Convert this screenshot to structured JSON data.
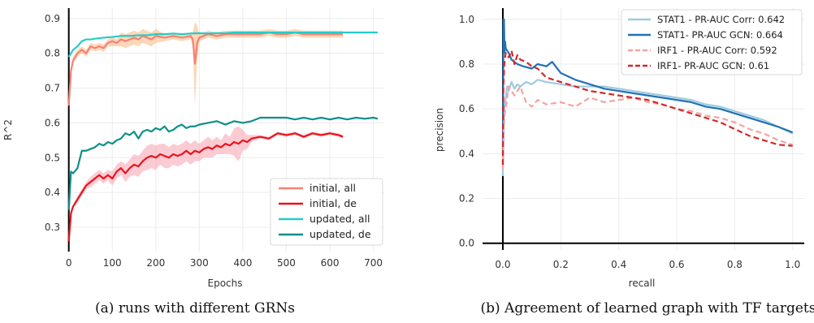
{
  "chart_data": [
    {
      "type": "line",
      "caption": "(a) runs with different GRNs",
      "xlabel": "Epochs",
      "ylabel": "R^2",
      "xlim": [
        -5,
        725
      ],
      "ylim": [
        0.23,
        0.93
      ],
      "xticks": [
        "0",
        "100",
        "200",
        "300",
        "400",
        "500",
        "600",
        "700"
      ],
      "yticks": [
        "0.3",
        "0.4",
        "0.5",
        "0.6",
        "0.7",
        "0.8",
        "0.9"
      ],
      "grid": true,
      "legend_position": "bottom-right",
      "series": [
        {
          "name": "initial, all",
          "color": "#fa8072",
          "band_color": "#f5b880",
          "x": [
            0,
            5,
            10,
            20,
            30,
            40,
            50,
            60,
            70,
            80,
            90,
            100,
            110,
            120,
            130,
            140,
            150,
            160,
            170,
            180,
            190,
            200,
            220,
            240,
            260,
            280,
            285,
            290,
            295,
            300,
            320,
            340,
            360,
            380,
            400,
            420,
            440,
            460,
            480,
            500,
            520,
            540,
            560,
            580,
            600,
            630
          ],
          "values": [
            0.65,
            0.75,
            0.78,
            0.8,
            0.81,
            0.8,
            0.82,
            0.815,
            0.82,
            0.815,
            0.83,
            0.835,
            0.83,
            0.84,
            0.835,
            0.84,
            0.845,
            0.84,
            0.85,
            0.845,
            0.84,
            0.85,
            0.845,
            0.85,
            0.845,
            0.85,
            0.84,
            0.77,
            0.83,
            0.845,
            0.855,
            0.85,
            0.855,
            0.855,
            0.855,
            0.855,
            0.855,
            0.86,
            0.855,
            0.855,
            0.86,
            0.855,
            0.855,
            0.855,
            0.855,
            0.855
          ],
          "band": [
            0.01,
            0.01,
            0.01,
            0.01,
            0.01,
            0.01,
            0.01,
            0.01,
            0.01,
            0.01,
            0.01,
            0.015,
            0.01,
            0.02,
            0.02,
            0.02,
            0.02,
            0.02,
            0.02,
            0.02,
            0.02,
            0.02,
            0.01,
            0.01,
            0.01,
            0.01,
            0.02,
            0.12,
            0.05,
            0.01,
            0.01,
            0.01,
            0.01,
            0.01,
            0.01,
            0.01,
            0.01,
            0.01,
            0.01,
            0.01,
            0.01,
            0.01,
            0.01,
            0.01,
            0.01,
            0.01
          ]
        },
        {
          "name": "initial, de",
          "color": "#e8141c",
          "band_color": "#f7a0b0",
          "x": [
            0,
            5,
            10,
            20,
            30,
            40,
            50,
            60,
            70,
            80,
            90,
            100,
            110,
            120,
            130,
            140,
            150,
            160,
            170,
            180,
            190,
            200,
            210,
            220,
            230,
            240,
            250,
            260,
            270,
            280,
            290,
            300,
            310,
            320,
            330,
            340,
            350,
            360,
            370,
            380,
            390,
            400,
            410,
            420,
            440,
            460,
            480,
            500,
            520,
            540,
            560,
            580,
            600,
            620,
            630
          ],
          "values": [
            0.26,
            0.34,
            0.36,
            0.38,
            0.4,
            0.42,
            0.43,
            0.44,
            0.45,
            0.44,
            0.45,
            0.44,
            0.46,
            0.47,
            0.455,
            0.47,
            0.48,
            0.475,
            0.49,
            0.5,
            0.505,
            0.5,
            0.51,
            0.505,
            0.5,
            0.51,
            0.505,
            0.51,
            0.52,
            0.51,
            0.52,
            0.515,
            0.525,
            0.53,
            0.525,
            0.535,
            0.53,
            0.54,
            0.535,
            0.545,
            0.54,
            0.55,
            0.545,
            0.555,
            0.56,
            0.555,
            0.57,
            0.565,
            0.57,
            0.56,
            0.57,
            0.565,
            0.57,
            0.565,
            0.56
          ],
          "band": [
            0.0,
            0.005,
            0.005,
            0.01,
            0.01,
            0.01,
            0.015,
            0.015,
            0.015,
            0.015,
            0.015,
            0.02,
            0.02,
            0.02,
            0.025,
            0.025,
            0.03,
            0.03,
            0.03,
            0.035,
            0.035,
            0.035,
            0.03,
            0.035,
            0.03,
            0.03,
            0.03,
            0.03,
            0.03,
            0.03,
            0.03,
            0.025,
            0.025,
            0.03,
            0.025,
            0.025,
            0.02,
            0.03,
            0.025,
            0.04,
            0.05,
            0.03,
            0.02,
            0.01,
            0.005,
            0.005,
            0.005,
            0.005,
            0.005,
            0.005,
            0.005,
            0.005,
            0.005,
            0.005,
            0.005
          ]
        },
        {
          "name": "updated, all",
          "color": "#25ccc8",
          "x": [
            0,
            5,
            10,
            20,
            30,
            40,
            50,
            60,
            80,
            100,
            120,
            140,
            160,
            180,
            200,
            220,
            240,
            260,
            280,
            300,
            320,
            340,
            360,
            380,
            400,
            420,
            440,
            460,
            480,
            500,
            520,
            540,
            560,
            580,
            600,
            620,
            640,
            660,
            680,
            700,
            710
          ],
          "values": [
            0.79,
            0.8,
            0.81,
            0.82,
            0.835,
            0.84,
            0.84,
            0.842,
            0.845,
            0.847,
            0.85,
            0.85,
            0.852,
            0.852,
            0.855,
            0.855,
            0.857,
            0.855,
            0.857,
            0.858,
            0.857,
            0.858,
            0.858,
            0.86,
            0.86,
            0.86,
            0.86,
            0.86,
            0.86,
            0.86,
            0.86,
            0.86,
            0.86,
            0.86,
            0.86,
            0.86,
            0.86,
            0.86,
            0.86,
            0.86,
            0.86
          ]
        },
        {
          "name": "updated, de",
          "color": "#0e8f8a",
          "x": [
            0,
            5,
            10,
            20,
            30,
            40,
            50,
            60,
            70,
            80,
            90,
            100,
            110,
            120,
            130,
            140,
            150,
            160,
            170,
            180,
            190,
            200,
            210,
            220,
            230,
            240,
            250,
            260,
            270,
            280,
            290,
            300,
            320,
            340,
            360,
            380,
            400,
            420,
            440,
            460,
            480,
            500,
            520,
            540,
            560,
            580,
            600,
            620,
            640,
            660,
            680,
            700,
            710
          ],
          "values": [
            0.35,
            0.46,
            0.455,
            0.47,
            0.52,
            0.52,
            0.525,
            0.53,
            0.54,
            0.535,
            0.545,
            0.54,
            0.55,
            0.555,
            0.57,
            0.565,
            0.575,
            0.555,
            0.575,
            0.58,
            0.575,
            0.585,
            0.58,
            0.59,
            0.575,
            0.58,
            0.59,
            0.595,
            0.585,
            0.59,
            0.59,
            0.595,
            0.6,
            0.605,
            0.595,
            0.605,
            0.6,
            0.605,
            0.615,
            0.615,
            0.615,
            0.615,
            0.61,
            0.615,
            0.61,
            0.615,
            0.61,
            0.615,
            0.61,
            0.615,
            0.612,
            0.615,
            0.612
          ]
        }
      ]
    },
    {
      "type": "line",
      "caption": "(b) Agreement of learned graph with TF targets",
      "xlabel": "recall",
      "ylabel": "precision",
      "xlim": [
        -0.07,
        1.04
      ],
      "ylim": [
        -0.03,
        1.05
      ],
      "xticks": [
        "0.0",
        "0.2",
        "0.4",
        "0.6",
        "0.8",
        "1.0"
      ],
      "yticks": [
        "0.0",
        "0.2",
        "0.4",
        "0.6",
        "0.8",
        "1.0"
      ],
      "grid": true,
      "legend_position": "top-right",
      "series": [
        {
          "name": "STAT1 - PR-AUC Corr: 0.642",
          "color": "#9ecae1",
          "dash": "solid",
          "x": [
            0.0,
            0.002,
            0.005,
            0.01,
            0.015,
            0.02,
            0.03,
            0.04,
            0.05,
            0.06,
            0.08,
            0.1,
            0.12,
            0.15,
            0.2,
            0.25,
            0.3,
            0.35,
            0.4,
            0.45,
            0.5,
            0.55,
            0.6,
            0.65,
            0.7,
            0.75,
            0.8,
            0.85,
            0.9,
            0.95,
            1.0
          ],
          "values": [
            0.3,
            0.5,
            0.6,
            0.65,
            0.7,
            0.68,
            0.72,
            0.69,
            0.71,
            0.7,
            0.72,
            0.71,
            0.73,
            0.72,
            0.71,
            0.7,
            0.7,
            0.7,
            0.69,
            0.68,
            0.67,
            0.66,
            0.65,
            0.64,
            0.62,
            0.61,
            0.59,
            0.57,
            0.55,
            0.52,
            0.49
          ]
        },
        {
          "name": "STAT1- PR-AUC GCN: 0.664",
          "color": "#2171b5",
          "dash": "solid",
          "x": [
            0.0,
            0.002,
            0.004,
            0.006,
            0.008,
            0.01,
            0.02,
            0.03,
            0.05,
            0.07,
            0.1,
            0.12,
            0.15,
            0.17,
            0.2,
            0.25,
            0.3,
            0.35,
            0.4,
            0.45,
            0.5,
            0.55,
            0.6,
            0.65,
            0.7,
            0.75,
            0.8,
            0.85,
            0.9,
            0.95,
            1.0
          ],
          "values": [
            0.4,
            1.0,
            1.0,
            0.85,
            0.9,
            0.87,
            0.85,
            0.82,
            0.8,
            0.79,
            0.78,
            0.8,
            0.79,
            0.81,
            0.76,
            0.73,
            0.71,
            0.69,
            0.68,
            0.67,
            0.66,
            0.65,
            0.64,
            0.63,
            0.61,
            0.6,
            0.58,
            0.56,
            0.54,
            0.52,
            0.495
          ]
        },
        {
          "name": "IRF1 - PR-AUC Corr: 0.592",
          "color": "#f4a3a3",
          "dash": "dashed",
          "x": [
            0.0,
            0.003,
            0.006,
            0.01,
            0.015,
            0.02,
            0.03,
            0.04,
            0.06,
            0.08,
            0.1,
            0.12,
            0.15,
            0.2,
            0.25,
            0.3,
            0.35,
            0.4,
            0.45,
            0.5,
            0.55,
            0.6,
            0.65,
            0.7,
            0.75,
            0.8,
            0.85,
            0.9,
            0.95,
            1.0
          ],
          "values": [
            0.33,
            0.5,
            0.58,
            0.6,
            0.65,
            0.7,
            0.68,
            0.66,
            0.7,
            0.63,
            0.61,
            0.64,
            0.62,
            0.63,
            0.61,
            0.65,
            0.63,
            0.64,
            0.65,
            0.63,
            0.62,
            0.6,
            0.59,
            0.57,
            0.56,
            0.54,
            0.51,
            0.49,
            0.46,
            0.44
          ]
        },
        {
          "name": "IRF1- PR-AUC GCN: 0.61",
          "color": "#d62728",
          "dash": "dashed",
          "x": [
            0.0,
            0.002,
            0.005,
            0.01,
            0.02,
            0.03,
            0.04,
            0.05,
            0.06,
            0.08,
            0.1,
            0.12,
            0.15,
            0.2,
            0.25,
            0.3,
            0.35,
            0.4,
            0.45,
            0.5,
            0.55,
            0.6,
            0.65,
            0.7,
            0.75,
            0.8,
            0.85,
            0.9,
            0.95,
            1.0
          ],
          "values": [
            0.35,
            0.7,
            0.8,
            0.85,
            0.83,
            0.86,
            0.8,
            0.84,
            0.82,
            0.81,
            0.79,
            0.78,
            0.74,
            0.72,
            0.7,
            0.68,
            0.67,
            0.66,
            0.65,
            0.64,
            0.62,
            0.6,
            0.58,
            0.56,
            0.54,
            0.51,
            0.48,
            0.46,
            0.44,
            0.435
          ]
        }
      ]
    }
  ]
}
